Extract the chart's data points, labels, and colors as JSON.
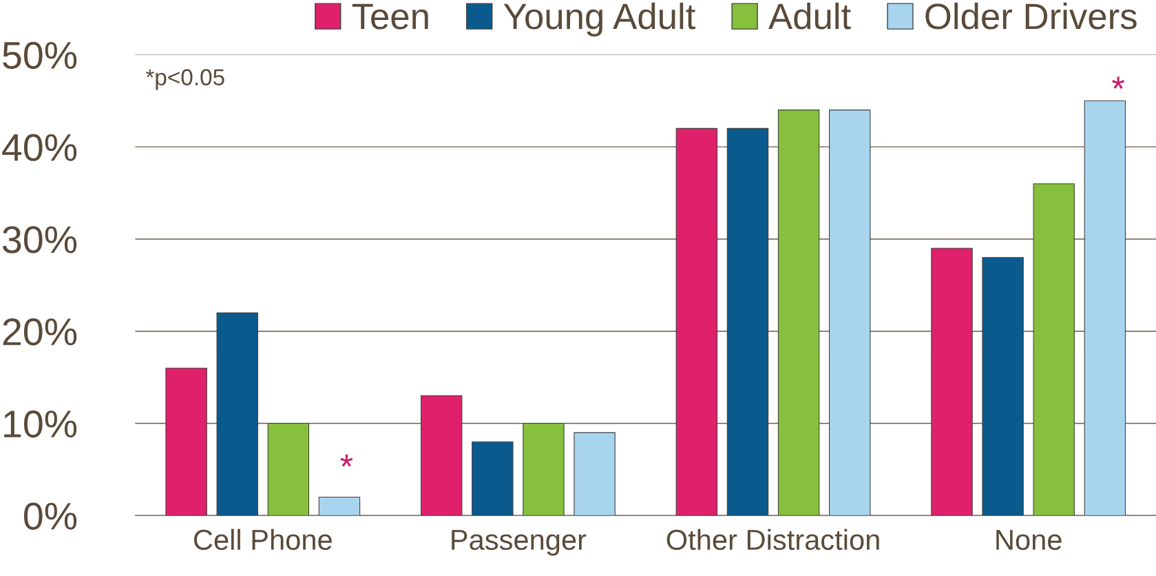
{
  "chart_data": {
    "type": "bar",
    "categories": [
      "Cell Phone",
      "Passenger",
      "Other Distraction",
      "None"
    ],
    "series": [
      {
        "name": "Teen",
        "color": "#e0206a",
        "values": [
          16,
          13,
          42,
          29
        ]
      },
      {
        "name": "Young Adult",
        "color": "#0a5a8e",
        "values": [
          22,
          8,
          42,
          28
        ]
      },
      {
        "name": "Adult",
        "color": "#86c03c",
        "values": [
          10,
          10,
          44,
          36
        ]
      },
      {
        "name": "Older Drivers",
        "color": "#a8d4ee",
        "values": [
          2,
          9,
          44,
          45
        ]
      }
    ],
    "ylim": [
      0,
      50
    ],
    "yticks": [
      {
        "value": 0,
        "label": "0%"
      },
      {
        "value": 10,
        "label": "10%"
      },
      {
        "value": 20,
        "label": "20%"
      },
      {
        "value": 30,
        "label": "30%"
      },
      {
        "value": 40,
        "label": "40%"
      },
      {
        "value": 50,
        "label": "50%"
      }
    ],
    "grid": "y",
    "legend": "top",
    "annotations": [
      "*p<0.05",
      "*",
      "*"
    ]
  }
}
